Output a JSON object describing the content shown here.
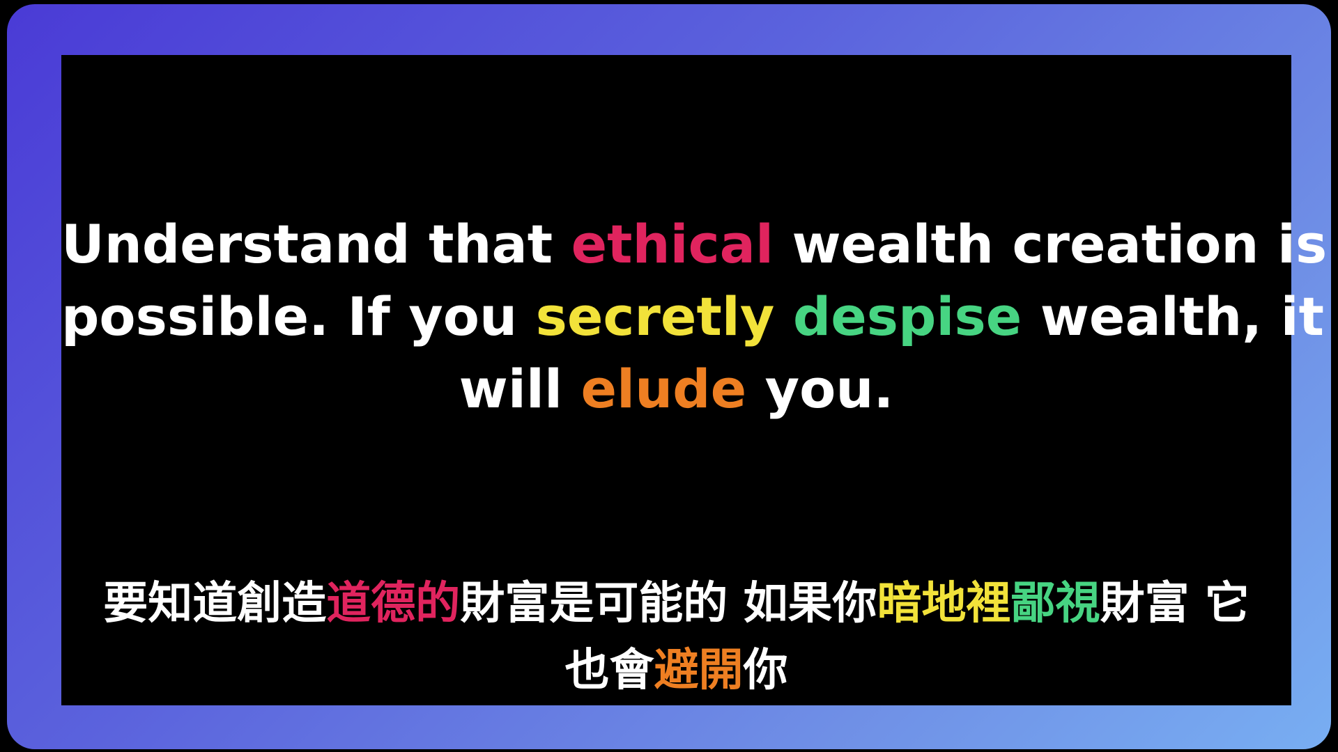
{
  "colors": {
    "frame_gradient_start": "#4a3bd6",
    "frame_gradient_end": "#78aef2",
    "panel_background": "#000000",
    "text_default": "#ffffff",
    "highlight_red": "#e0245e",
    "highlight_yellow": "#f2e23a",
    "highlight_green": "#47d482",
    "highlight_orange": "#ee7f22"
  },
  "english": {
    "line1": {
      "a": "Understand that ",
      "b": "ethical",
      "c": " wealth creation is"
    },
    "line2": {
      "a": "possible. If you ",
      "b": "secretly",
      "c": " ",
      "d": "despise",
      "e": " wealth, it"
    },
    "line3": {
      "a": "will ",
      "b": "elude",
      "c": " you."
    }
  },
  "chinese": {
    "line1": {
      "a": "要知道創造",
      "b": "道德的",
      "c": "財富是可能的 如果你",
      "d": "暗地裡",
      "e": "鄙視",
      "f": "財富 它"
    },
    "line2": {
      "a": "也會",
      "b": "避開",
      "c": "你"
    }
  }
}
